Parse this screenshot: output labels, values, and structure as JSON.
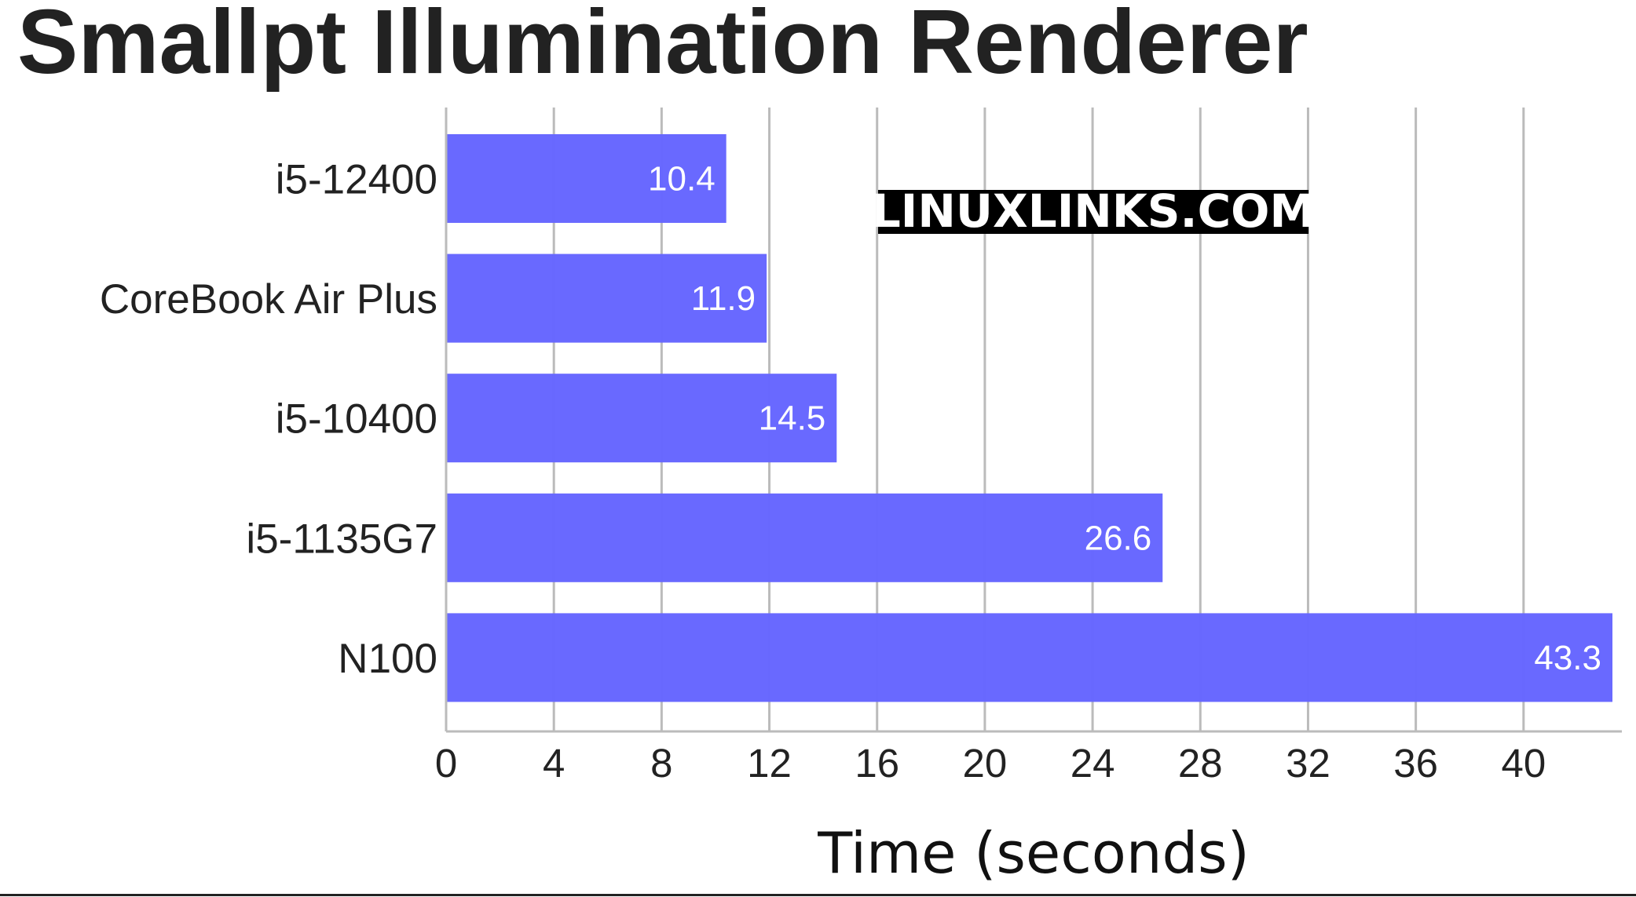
{
  "chart_data": {
    "type": "bar",
    "orientation": "horizontal",
    "title": "Smallpt Illumination Renderer",
    "categories": [
      "i5-12400",
      "CoreBook Air Plus",
      "i5-10400",
      "i5-1135G7",
      "N100"
    ],
    "values": [
      10.4,
      11.9,
      14.5,
      26.6,
      43.3
    ],
    "xlabel": "Time (seconds)",
    "ylabel": "",
    "xlim": [
      0,
      43.3
    ],
    "xticks": [
      0,
      4,
      8,
      12,
      16,
      20,
      24,
      28,
      32,
      36,
      40
    ],
    "grid": "vertical",
    "legend": "none",
    "bar_color": "#6666ff",
    "watermark": "LINUXLINKS.COM"
  }
}
